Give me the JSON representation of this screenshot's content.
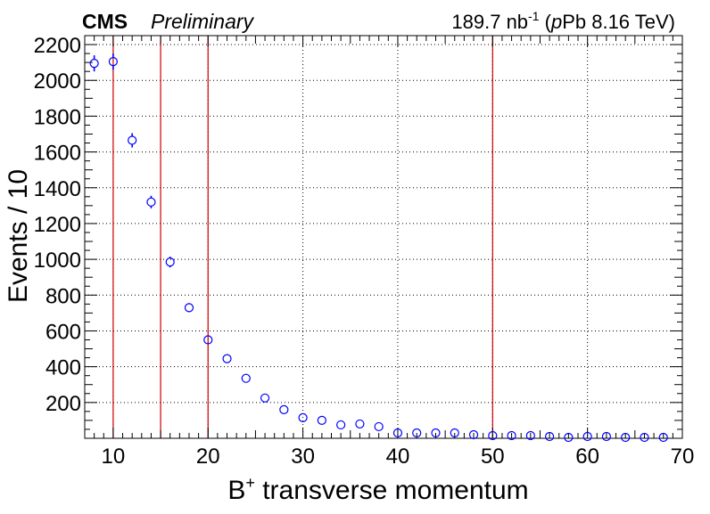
{
  "header": {
    "experiment": "CMS",
    "status": "Preliminary",
    "lumi_value": "189.7 nb",
    "lumi_exponent": "-1",
    "lumi_open": " (",
    "lumi_italic": "p",
    "lumi_rest": "Pb 8.16 TeV)"
  },
  "chart_data": {
    "type": "scatter",
    "xlabel_main": "B",
    "xlabel_sup": "+",
    "xlabel_rest": " transverse momentum",
    "ylabel": "Events / 10",
    "xlim": [
      7,
      70
    ],
    "ylim": [
      0,
      2250
    ],
    "x_ticks": [
      10,
      20,
      30,
      40,
      50,
      60,
      70
    ],
    "y_ticks": [
      200,
      400,
      600,
      800,
      1000,
      1200,
      1400,
      1600,
      1800,
      2000,
      2200
    ],
    "grid": true,
    "marker_color": "#0000ff",
    "bin_edge_line_color": "#cc0000",
    "bin_edge_lines_x": [
      10,
      15,
      20,
      50
    ],
    "series": [
      {
        "x": [
          8,
          10,
          12,
          14,
          16,
          18,
          20,
          22,
          24,
          26,
          28,
          30,
          32,
          34,
          36,
          38,
          40,
          42,
          44,
          46,
          48,
          50,
          52,
          54,
          56,
          58,
          60,
          62,
          64,
          66,
          68
        ],
        "y": [
          2095,
          2105,
          1665,
          1320,
          985,
          730,
          550,
          445,
          335,
          225,
          160,
          115,
          100,
          75,
          80,
          65,
          30,
          30,
          30,
          30,
          20,
          15,
          15,
          15,
          10,
          5,
          10,
          10,
          5,
          5,
          5
        ],
        "yerr": [
          45,
          45,
          40,
          35,
          30,
          25,
          22,
          20,
          17,
          14,
          12,
          10,
          9,
          8,
          8,
          7,
          5,
          5,
          5,
          5,
          4,
          3,
          3,
          3,
          3,
          2,
          3,
          3,
          2,
          2,
          2
        ]
      }
    ]
  }
}
